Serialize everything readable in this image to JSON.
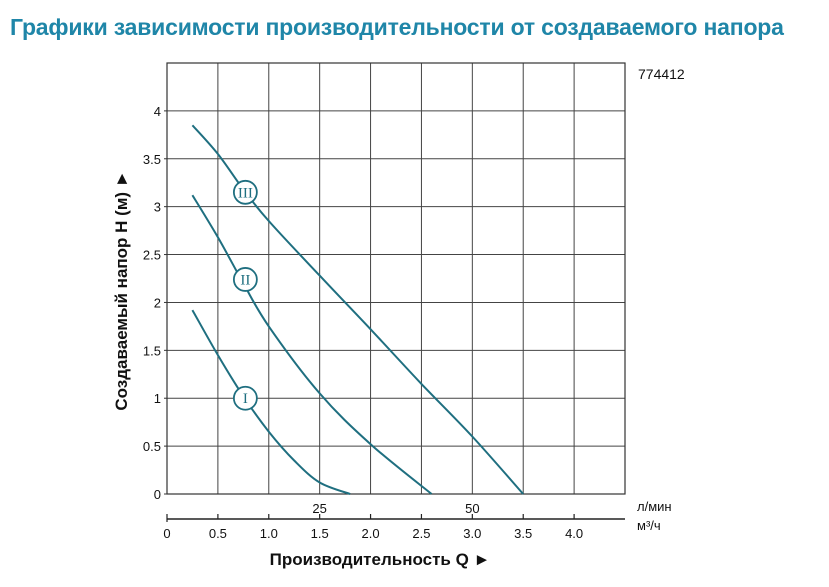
{
  "title": "Графики зависимости производительности от создаваемого напора",
  "model": "774412",
  "colors": {
    "title": "#1f86a8",
    "curve": "#1f6f80",
    "grid": "#444444"
  },
  "chart_data": {
    "type": "line",
    "ylabel": "Создаваемый напор H (м) ►",
    "xlabel": "Производительность Q ►",
    "ylim": [
      0,
      4.5
    ],
    "yticks": [
      0,
      0.5,
      1,
      1.5,
      2,
      2.5,
      3,
      3.5,
      4
    ],
    "ytick_labels": [
      "0",
      "0.5",
      "1",
      "1.5",
      "2",
      "2.5",
      "3",
      "3.5",
      "4"
    ],
    "xlim_m3h": [
      0,
      4.5
    ],
    "xticks_m3h": [
      0.5,
      1.0,
      1.5,
      2.0,
      2.5,
      3.0,
      3.5,
      4.0
    ],
    "xtick_labels_m3h": [
      "0.5",
      "1.0",
      "1.5",
      "2.0",
      "2.5",
      "3.0",
      "3.5",
      "4.0"
    ],
    "x_origin_label": "0",
    "xticks_lmin": [
      25,
      50
    ],
    "xtick_labels_lmin": [
      "25",
      "50"
    ],
    "unit_lmin": "л/мин",
    "unit_m3h": "м³/ч",
    "grid": true,
    "series": [
      {
        "name": "I",
        "x": [
          0.25,
          0.5,
          0.75,
          1.0,
          1.25,
          1.5,
          1.8
        ],
        "y": [
          1.92,
          1.45,
          1.02,
          0.65,
          0.35,
          0.12,
          0.0
        ]
      },
      {
        "name": "II",
        "x": [
          0.25,
          0.5,
          0.75,
          1.0,
          1.5,
          2.0,
          2.6
        ],
        "y": [
          3.12,
          2.68,
          2.2,
          1.75,
          1.05,
          0.52,
          0.0
        ]
      },
      {
        "name": "III",
        "x": [
          0.25,
          0.5,
          0.75,
          1.0,
          1.5,
          2.0,
          2.5,
          3.0,
          3.5
        ],
        "y": [
          3.85,
          3.55,
          3.18,
          2.85,
          2.28,
          1.72,
          1.15,
          0.6,
          0.0
        ]
      }
    ],
    "curve_labels": [
      {
        "text": "III",
        "x": 0.77,
        "y": 3.15
      },
      {
        "text": "II",
        "x": 0.77,
        "y": 2.24
      },
      {
        "text": "I",
        "x": 0.77,
        "y": 1.0
      }
    ]
  }
}
